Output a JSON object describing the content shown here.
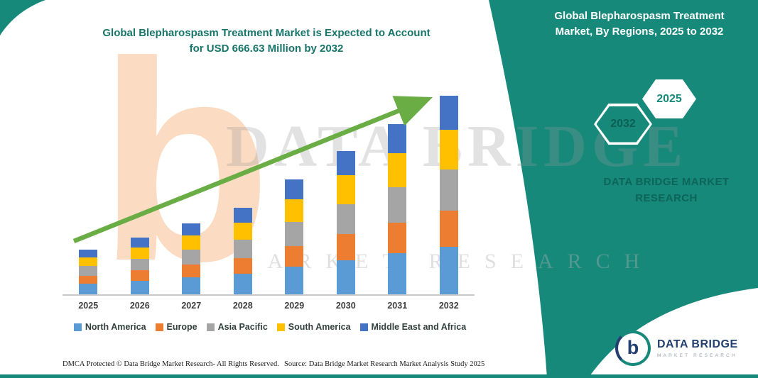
{
  "header": {
    "left_title_line1": "Global Blepharospasm Treatment Market is Expected to Account",
    "left_title_line2": "for USD 666.63 Million by 2032",
    "right_title_line1": "Global Blepharospasm Treatment",
    "right_title_line2": "Market, By Regions, 2025 to 2032"
  },
  "teal_panel": {
    "hexagon_back_year": "2032",
    "hexagon_front_year": "2025",
    "brand_line1": "DATA BRIDGE MARKET",
    "brand_line2": "RESEARCH"
  },
  "watermarks": {
    "letter": "b",
    "brand": "DATA BRIDGE",
    "sub": "MARKET RESEARCH"
  },
  "logo": {
    "letter": "b",
    "name": "DATA BRIDGE",
    "tagline": "MARKET RESEARCH"
  },
  "footer": {
    "dmca": "DMCA Protected © Data Bridge Market Research-  All Rights Reserved.",
    "source": "Source: Data Bridge Market Research  Market Analysis Study 2025"
  },
  "colors": {
    "teal": "#17897B",
    "title_teal": "#17756A",
    "brand_text_teal": "#0D655A",
    "hex_year_dark": "#0B6052",
    "arrow_green": "#69AD44"
  },
  "chart_data": {
    "type": "bar",
    "stacked": true,
    "title": "Global Blepharospasm Treatment Market, By Regions, 2025 to 2032",
    "categories": [
      "2025",
      "2026",
      "2027",
      "2028",
      "2029",
      "2030",
      "2031",
      "2032"
    ],
    "series": [
      {
        "name": "North America",
        "color": "#5B9BD5",
        "values": [
          36,
          46,
          57,
          70,
          93,
          115,
          137,
          160
        ]
      },
      {
        "name": "Europe",
        "color": "#ED7D31",
        "values": [
          27,
          34,
          43,
          52,
          69,
          87,
          103,
          120
        ]
      },
      {
        "name": "Asia Pacific",
        "color": "#A5A5A5",
        "values": [
          32,
          40,
          50,
          61,
          81,
          101,
          120,
          140
        ]
      },
      {
        "name": "South America",
        "color": "#FFC000",
        "values": [
          30,
          38,
          48,
          58,
          77,
          96,
          114,
          133
        ]
      },
      {
        "name": "Middle East and Africa",
        "color": "#4472C4",
        "values": [
          25,
          32,
          40,
          49,
          66,
          82,
          97,
          113.63
        ]
      }
    ],
    "totals": [
      150,
      190,
      238,
      290,
      386,
      481,
      571,
      666.63
    ],
    "ylim": [
      0,
      700
    ],
    "xlabel": "",
    "ylabel": "",
    "grid": false,
    "legend_position": "bottom",
    "annotation": "upward growth trend arrow across bars"
  }
}
